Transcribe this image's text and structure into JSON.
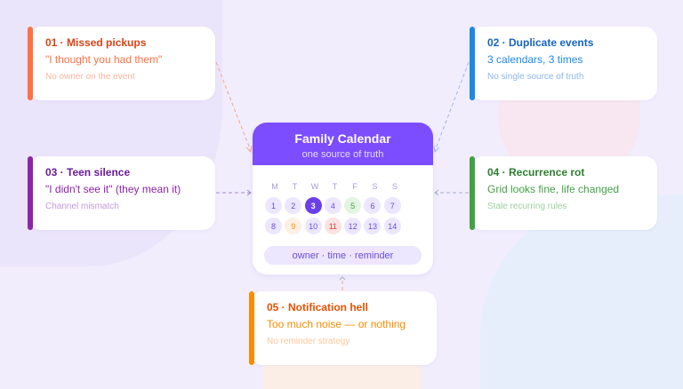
{
  "calendar": {
    "title": "Family Calendar",
    "subtitle": "one source of truth",
    "weekdays": [
      "M",
      "T",
      "W",
      "T",
      "F",
      "S",
      "S"
    ],
    "weeks": [
      [
        "1",
        "2",
        "3",
        "4",
        "5",
        "6",
        "7"
      ],
      [
        "8",
        "9",
        "10",
        "11",
        "12",
        "13",
        "14"
      ]
    ],
    "highlighted": {
      "today": "3",
      "green": "5",
      "orange": "9",
      "red": "11"
    },
    "footer": "owner · time · reminder"
  },
  "cards": [
    {
      "title": "01 · Missed pickups",
      "quote": "\"I thought you had them\"",
      "sub": "No owner on the event",
      "color": "#ff7043"
    },
    {
      "title": "02 · Duplicate events",
      "quote": "3 calendars, 3 times",
      "sub": "No single source of truth",
      "color": "#1e88e5"
    },
    {
      "title": "03 · Teen silence",
      "quote": "\"I didn't see it\" (they mean it)",
      "sub": "Channel mismatch",
      "color": "#8e24aa"
    },
    {
      "title": "04 · Recurrence rot",
      "quote": "Grid looks fine, life changed",
      "sub": "Stale recurring rules",
      "color": "#43a047"
    },
    {
      "title": "05 · Notification hell",
      "quote": "Too much noise — or nothing",
      "sub": "No reminder strategy",
      "color": "#fb8c00"
    }
  ],
  "colors": {
    "accent": "#7c4dff",
    "background": "#f1edfd"
  }
}
